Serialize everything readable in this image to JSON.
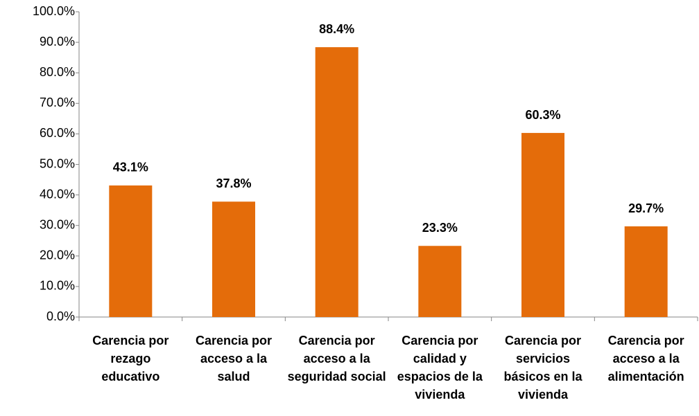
{
  "chart_data": {
    "type": "bar",
    "categories": [
      "Carencia por rezago educativo",
      "Carencia por acceso a la salud",
      "Carencia por acceso a la seguridad social",
      "Carencia por calidad y espacios de la vivienda",
      "Carencia por servicios básicos en la vivienda",
      "Carencia por acceso a la alimentación"
    ],
    "values": [
      43.1,
      37.8,
      88.4,
      23.3,
      60.3,
      29.7
    ],
    "value_labels": [
      "43.1%",
      "37.8%",
      "88.4%",
      "23.3%",
      "60.3%",
      "29.7%"
    ],
    "color": "#e46c0a",
    "ylim": [
      0,
      100
    ],
    "yticks": [
      {
        "value": 0,
        "label": "0.0%"
      },
      {
        "value": 10,
        "label": "10.0%"
      },
      {
        "value": 20,
        "label": "20.0%"
      },
      {
        "value": 30,
        "label": "30.0%"
      },
      {
        "value": 40,
        "label": "40.0%"
      },
      {
        "value": 50,
        "label": "50.0%"
      },
      {
        "value": 60,
        "label": "60.0%"
      },
      {
        "value": 70,
        "label": "70.0%"
      },
      {
        "value": 80,
        "label": "80.0%"
      },
      {
        "value": 90,
        "label": "90.0%"
      },
      {
        "value": 100,
        "label": "100.0%"
      }
    ],
    "grid": false
  }
}
